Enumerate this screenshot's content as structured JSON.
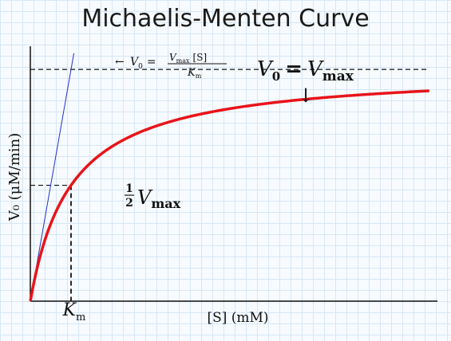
{
  "chart_data": {
    "type": "line",
    "title": "Michaelis-Menten Curve",
    "xlabel": "[S] (mM)",
    "ylabel": "V₀ (μM/min)",
    "xlim": [
      0,
      10
    ],
    "ylim": [
      0,
      1.1
    ],
    "km": 1,
    "vmax": 1,
    "series": [
      {
        "kind": "michaelis-menten",
        "color": "#e8141a"
      },
      {
        "kind": "initial-slope",
        "color": "#2233cc"
      }
    ],
    "x_ticks": [
      {
        "value": 1,
        "label": "K",
        "sub": "m"
      }
    ],
    "annotations": {
      "vmax_label": {
        "v": "V",
        "v_sub": "0",
        "eq": "=",
        "vmax": "V",
        "vmax_sub": "max",
        "arrow": "↓"
      },
      "half_label": {
        "num": "1",
        "den": "2",
        "v": "V",
        "sub": "max"
      },
      "slope_label": {
        "arrow": "←",
        "lhs": "V",
        "lhs_sub": "0",
        "eq": "=",
        "num_v": "V",
        "num_sub": "max",
        "num_s": "[S]",
        "den_k": "K",
        "den_sub": "m"
      }
    },
    "grid": true
  }
}
